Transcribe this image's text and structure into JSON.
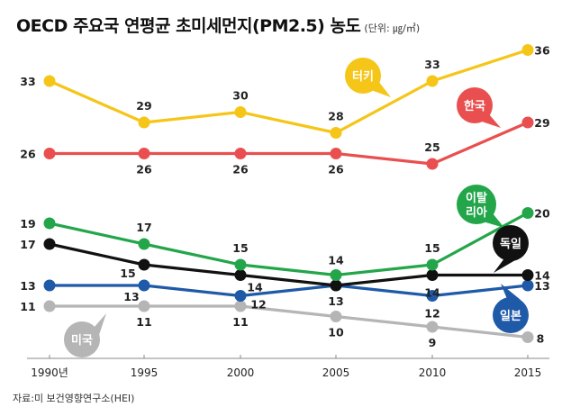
{
  "title": "OECD 주요국 연평균 초미세먼지(PM2.5) 농도",
  "unit": "(단위: ㎍/㎥)",
  "source": "자료:미 보건영향연구소(HEI)",
  "chart_data": {
    "type": "line",
    "x": [
      "1990년",
      "1995",
      "2000",
      "2005",
      "2010",
      "2015"
    ],
    "series": [
      {
        "name": "터키",
        "values": [
          33,
          29,
          30,
          28,
          33,
          36
        ],
        "color": "#f5c518",
        "bubble_text": "#ffffff"
      },
      {
        "name": "한국",
        "values": [
          26,
          26,
          26,
          26,
          25,
          29
        ],
        "color": "#e94f4f",
        "bubble_text": "#ffffff"
      },
      {
        "name": "이탈리아",
        "values": [
          19,
          17,
          15,
          14,
          15,
          20
        ],
        "color": "#23a64a",
        "bubble_text": "#ffffff"
      },
      {
        "name": "독일",
        "values": [
          17,
          15,
          14,
          13,
          14,
          14
        ],
        "color": "#111111",
        "bubble_text": "#ffffff"
      },
      {
        "name": "일본",
        "values": [
          13,
          13,
          12,
          13,
          12,
          13
        ],
        "color": "#1e5aa8",
        "bubble_text": "#ffffff"
      },
      {
        "name": "미국",
        "values": [
          11,
          11,
          11,
          10,
          9,
          8
        ],
        "color": "#b5b5b5",
        "bubble_text": "#ffffff"
      }
    ],
    "ylim": [
      7,
      37
    ],
    "grid": false,
    "legend": "inline-bubbles"
  }
}
